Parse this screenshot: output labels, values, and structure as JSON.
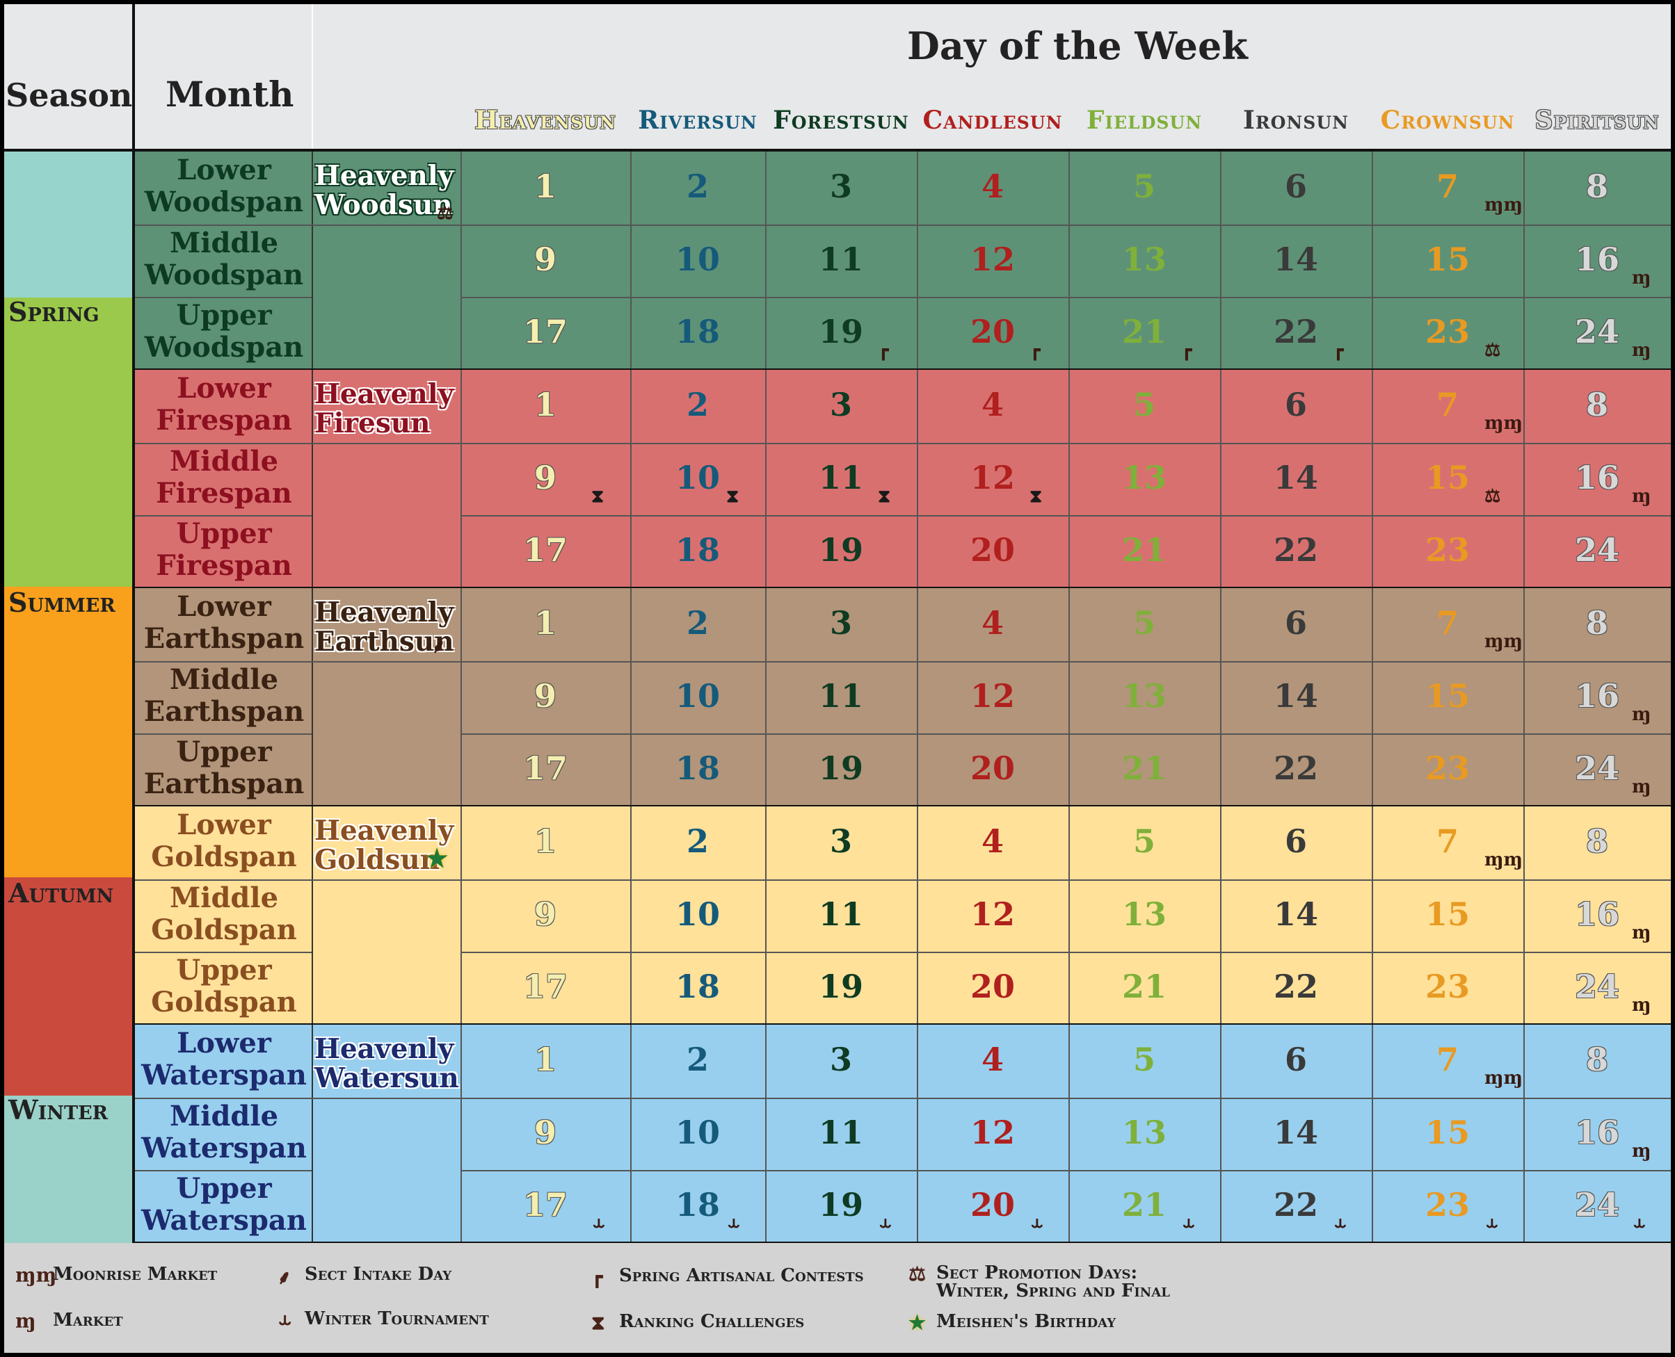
{
  "header": {
    "season": "Season",
    "month": "Month",
    "title": "Day of the Week",
    "days": [
      {
        "label": "Heavensun",
        "color": "#f4eeb0"
      },
      {
        "label": "Riversun",
        "color": "#155a7a"
      },
      {
        "label": "Forestsun",
        "color": "#0e3b22"
      },
      {
        "label": "Candlesun",
        "color": "#b0201e"
      },
      {
        "label": "Fieldsun",
        "color": "#7fb03a"
      },
      {
        "label": "Ironsun",
        "color": "#3a3a3a"
      },
      {
        "label": "Crownsun",
        "color": "#e89a22"
      },
      {
        "label": "Spiritsun",
        "color": "#d8d8d8"
      }
    ]
  },
  "seasons": [
    {
      "label": "Spring",
      "color": "#97d4cc"
    },
    {
      "label": "Spring",
      "color": "#9bc94b"
    },
    {
      "label": "Summer",
      "color": "#f9a01c"
    },
    {
      "label": "Autumn",
      "color": "#cb4a3e"
    },
    {
      "label": "Winter",
      "color": "#9ad1c8"
    }
  ],
  "blocks": [
    {
      "bg": "#5e9277",
      "text_color": "#0d3a22",
      "heavenly": "Heavenly Woodsun",
      "heavenly_color": "#ffffff",
      "heavenly_outline": "#0d3a22",
      "months": [
        "Lower Woodspan",
        "Middle Woodspan",
        "Upper Woodspan"
      ]
    },
    {
      "bg": "#d97070",
      "text_color": "#8c1020",
      "heavenly": "Heavenly Firesun",
      "heavenly_color": "#8c1020",
      "heavenly_outline": "#ffffff",
      "months": [
        "Lower Firespan",
        "Middle Firespan",
        "Upper Firespan"
      ]
    },
    {
      "bg": "#b2957a",
      "text_color": "#3a2212",
      "heavenly": "Heavenly Earthsun",
      "heavenly_color": "#3a2212",
      "heavenly_outline": "#ffffff",
      "months": [
        "Lower Earthspan",
        "Middle Earthspan",
        "Upper Earthspan"
      ]
    },
    {
      "bg": "#ffe19a",
      "text_color": "#8a4e20",
      "heavenly": "Heavenly Goldsun",
      "heavenly_color": "#8a4e20",
      "heavenly_outline": "#ffffff",
      "months": [
        "Lower Goldspan",
        "Middle Goldspan",
        "Upper Goldspan"
      ]
    },
    {
      "bg": "#98cfee",
      "text_color": "#1c2a6e",
      "heavenly": "Heavenly Watersun",
      "heavenly_color": "#1c2a6e",
      "heavenly_outline": "#ffffff",
      "months": [
        "Lower Waterspan",
        "Middle Waterspan",
        "Upper Waterspan"
      ]
    }
  ],
  "numbers": [
    [
      "1",
      "2",
      "3",
      "4",
      "5",
      "6",
      "7",
      "8"
    ],
    [
      "9",
      "10",
      "11",
      "12",
      "13",
      "14",
      "15",
      "16"
    ],
    [
      "17",
      "18",
      "19",
      "20",
      "21",
      "22",
      "23",
      "24"
    ]
  ],
  "legend": [
    {
      "icon": "ɱɱ",
      "label": "Moonrise Market",
      "icon_name": "moonrise-market-icon"
    },
    {
      "icon": "ɱ",
      "label": "Market",
      "icon_name": "market-icon"
    },
    {
      "icon": "⸙",
      "label": "Sect Intake Day",
      "icon_name": "sect-intake-icon"
    },
    {
      "icon": "⥿",
      "label": "Winter Tournament",
      "icon_name": "winter-tournament-icon"
    },
    {
      "icon": "┏",
      "label": "Spring Artisanal Contests",
      "icon_name": "hammer-icon"
    },
    {
      "icon": "⧗",
      "label": "Ranking Challenges",
      "icon_name": "hourglass-icon"
    },
    {
      "icon": "⚖",
      "label": "Sect Promotion Days: Winter, Spring and Final",
      "icon_name": "scales-icon"
    },
    {
      "icon": "★",
      "label": "Meishen's Birthday",
      "icon_name": "star-icon"
    }
  ]
}
